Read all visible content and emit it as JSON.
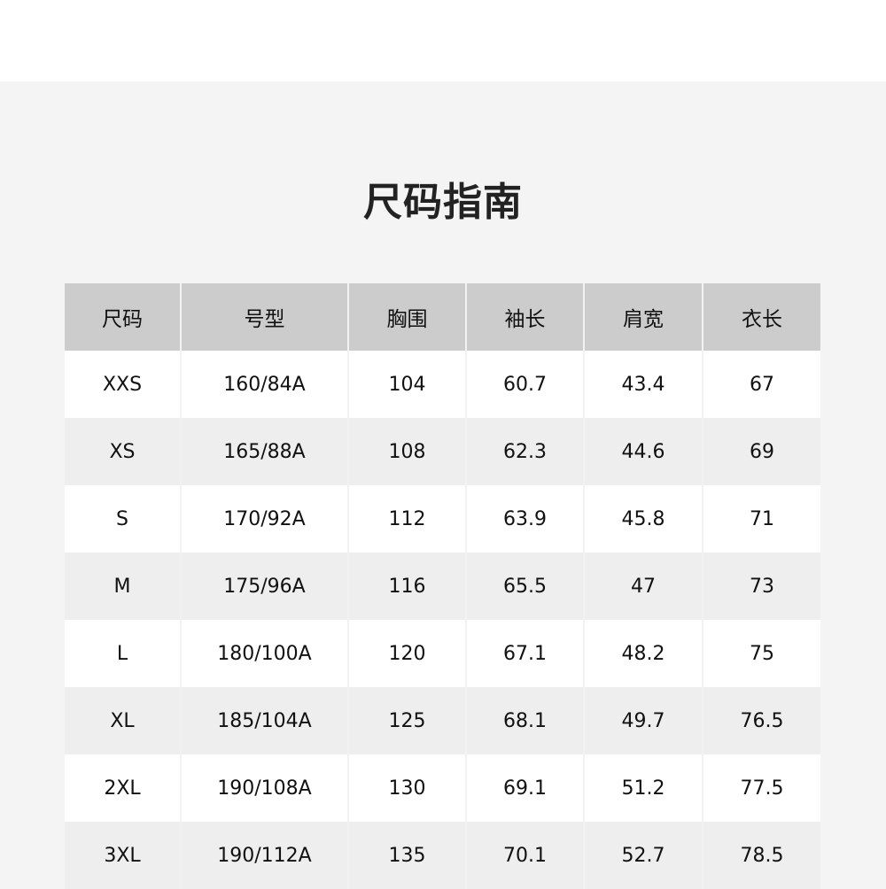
{
  "title": "尺码指南",
  "table": {
    "headers": [
      "尺码",
      "号型",
      "胸围",
      "袖长",
      "肩宽",
      "衣长"
    ],
    "rows": [
      [
        "XXS",
        "160/84A",
        "104",
        "60.7",
        "43.4",
        "67"
      ],
      [
        "XS",
        "165/88A",
        "108",
        "62.3",
        "44.6",
        "69"
      ],
      [
        "S",
        "170/92A",
        "112",
        "63.9",
        "45.8",
        "71"
      ],
      [
        "M",
        "175/96A",
        "116",
        "65.5",
        "47",
        "73"
      ],
      [
        "L",
        "180/100A",
        "120",
        "67.1",
        "48.2",
        "75"
      ],
      [
        "XL",
        "185/104A",
        "125",
        "68.1",
        "49.7",
        "76.5"
      ],
      [
        "2XL",
        "190/108A",
        "130",
        "69.1",
        "51.2",
        "77.5"
      ],
      [
        "3XL",
        "190/112A",
        "135",
        "70.1",
        "52.7",
        "78.5"
      ]
    ]
  }
}
